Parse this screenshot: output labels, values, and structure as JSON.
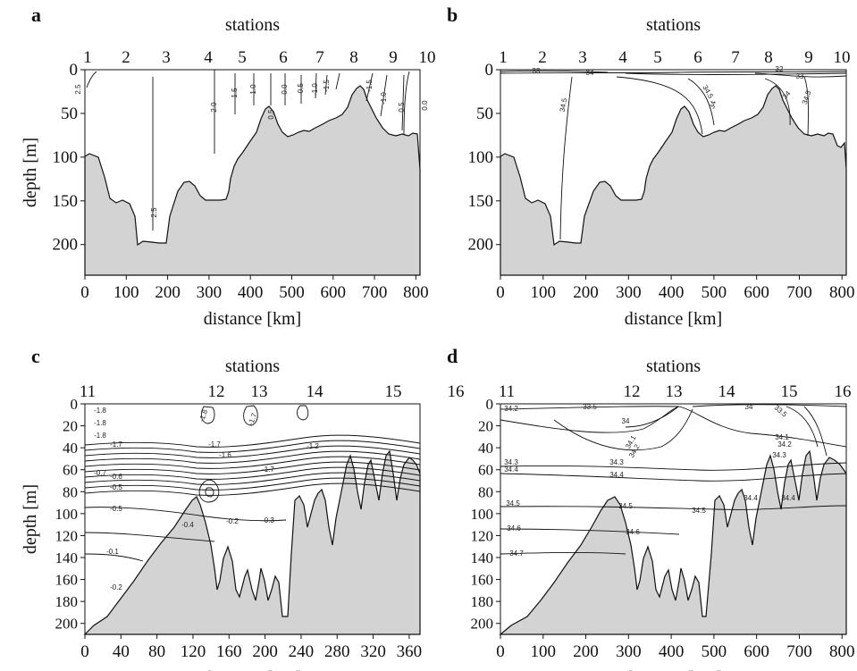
{
  "chart_data": [
    {
      "panel": "a",
      "type": "contour",
      "top_axis_label": "stations",
      "stations": [
        "1",
        "2",
        "3",
        "4",
        "5",
        "6",
        "7",
        "8",
        "9",
        "10"
      ],
      "xlabel": "distance [km]",
      "ylabel": "depth [m]",
      "xlim": [
        0,
        810
      ],
      "ylim": [
        235,
        0
      ],
      "xticks": [
        0,
        100,
        200,
        300,
        400,
        500,
        600,
        700,
        800
      ],
      "yticks": [
        0,
        50,
        100,
        150,
        200
      ],
      "contour_labels": [
        "2.5",
        "2.5",
        "2.0",
        "1.5",
        "1.0",
        "0.5",
        "0.0",
        "-0.5",
        "-1.0",
        "-1.5",
        "-1.5",
        "-1.0",
        "0.5",
        "0.0"
      ]
    },
    {
      "panel": "b",
      "type": "contour",
      "top_axis_label": "stations",
      "stations": [
        "1",
        "2",
        "3",
        "4",
        "5",
        "6",
        "7",
        "8",
        "9",
        "10"
      ],
      "xlabel": "distance [km]",
      "ylabel": "",
      "xlim": [
        0,
        810
      ],
      "ylim": [
        235,
        0
      ],
      "xticks": [
        0,
        100,
        200,
        300,
        400,
        500,
        600,
        700,
        800
      ],
      "yticks": [
        0,
        50,
        100,
        150,
        200
      ],
      "contour_labels": [
        "33",
        "34",
        "34.5",
        "34.5",
        "34",
        "32",
        "33",
        "34",
        "34.5"
      ]
    },
    {
      "panel": "c",
      "type": "contour",
      "top_axis_label": "stations",
      "stations": [
        "11",
        "12",
        "13",
        "14",
        "15",
        "16"
      ],
      "xlabel": "distance [km]",
      "ylabel": "depth [m]",
      "xlim": [
        0,
        372
      ],
      "ylim": [
        210,
        0
      ],
      "xticks": [
        0,
        40,
        80,
        120,
        160,
        200,
        240,
        280,
        320,
        360
      ],
      "yticks": [
        0,
        20,
        40,
        60,
        80,
        100,
        120,
        140,
        160,
        180,
        200
      ],
      "contour_labels": [
        "-1.8",
        "-1.8",
        "-1.8",
        "-1.7",
        "-1.7",
        "-1.7",
        "-1.8",
        "-1.6",
        "-1.7",
        "-1.2",
        "-0.6",
        "-0.5",
        "-0.2",
        "-0.3",
        "-0.4",
        "-0.2",
        "-0.1",
        "-0.7",
        "-0.5"
      ]
    },
    {
      "panel": "d",
      "type": "contour",
      "top_axis_label": "stations",
      "stations": [
        "11",
        "12",
        "13",
        "14",
        "15",
        "16"
      ],
      "xlabel": "distance [km]",
      "ylabel": "",
      "xlim": [
        0,
        810
      ],
      "ylim": [
        210,
        0
      ],
      "xticks": [
        0,
        100,
        200,
        300,
        400,
        500,
        600,
        700,
        800
      ],
      "yticks": [
        0,
        20,
        40,
        60,
        80,
        100,
        120,
        140,
        160,
        180,
        200
      ],
      "contour_labels": [
        "34.2",
        "33.5",
        "34",
        "34.1",
        "34.2",
        "34",
        "33.5",
        "34.1",
        "34.2",
        "34.3",
        "34.3",
        "34.4",
        "34.3",
        "34.4",
        "34.5",
        "34.5",
        "34.4",
        "34.4",
        "34.6",
        "34.6",
        "34.5",
        "34.7"
      ]
    }
  ]
}
